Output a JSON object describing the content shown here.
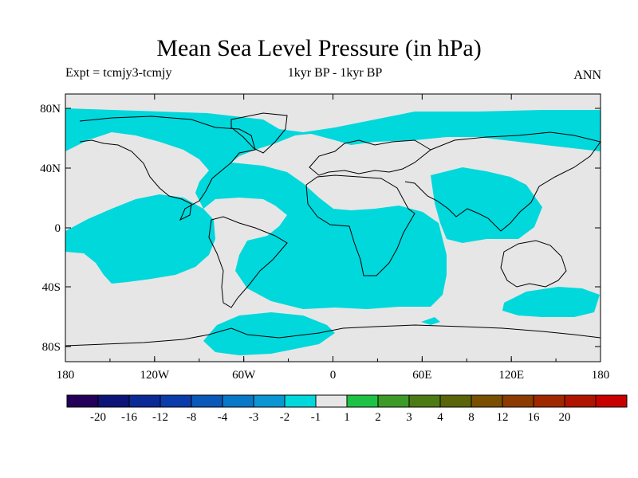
{
  "title": "Mean Sea Level Pressure (in hPa)",
  "subtitle_left": "Expt = tcmjy3-tcmjy",
  "subtitle_center": "1kyr BP - 1kyr BP",
  "subtitle_right": "ANN",
  "map": {
    "lat_ticks": [
      "80N",
      "40N",
      "0",
      "40S",
      "80S"
    ],
    "lon_ticks": [
      "180",
      "120W",
      "60W",
      "0",
      "60E",
      "120E",
      "180"
    ],
    "background_color": "#e6e6e6",
    "shaded_color": "#00d8dc",
    "shaded_class": "-2 to -1"
  },
  "colorbar": {
    "colors": [
      "#24005a",
      "#0c1478",
      "#0a2a96",
      "#0c3caa",
      "#0a58b8",
      "#0a78c8",
      "#0a96d2",
      "#00d8dc",
      "#e6e6e6",
      "#1ec346",
      "#3c9a28",
      "#4c7a14",
      "#5a6408",
      "#785000",
      "#8c3c00",
      "#a02800",
      "#b01400",
      "#c80000"
    ],
    "labels": [
      "-20",
      "-16",
      "-12",
      "-8",
      "-4",
      "-3",
      "-2",
      "-1",
      "1",
      "2",
      "3",
      "4",
      "8",
      "12",
      "16",
      "20"
    ]
  }
}
